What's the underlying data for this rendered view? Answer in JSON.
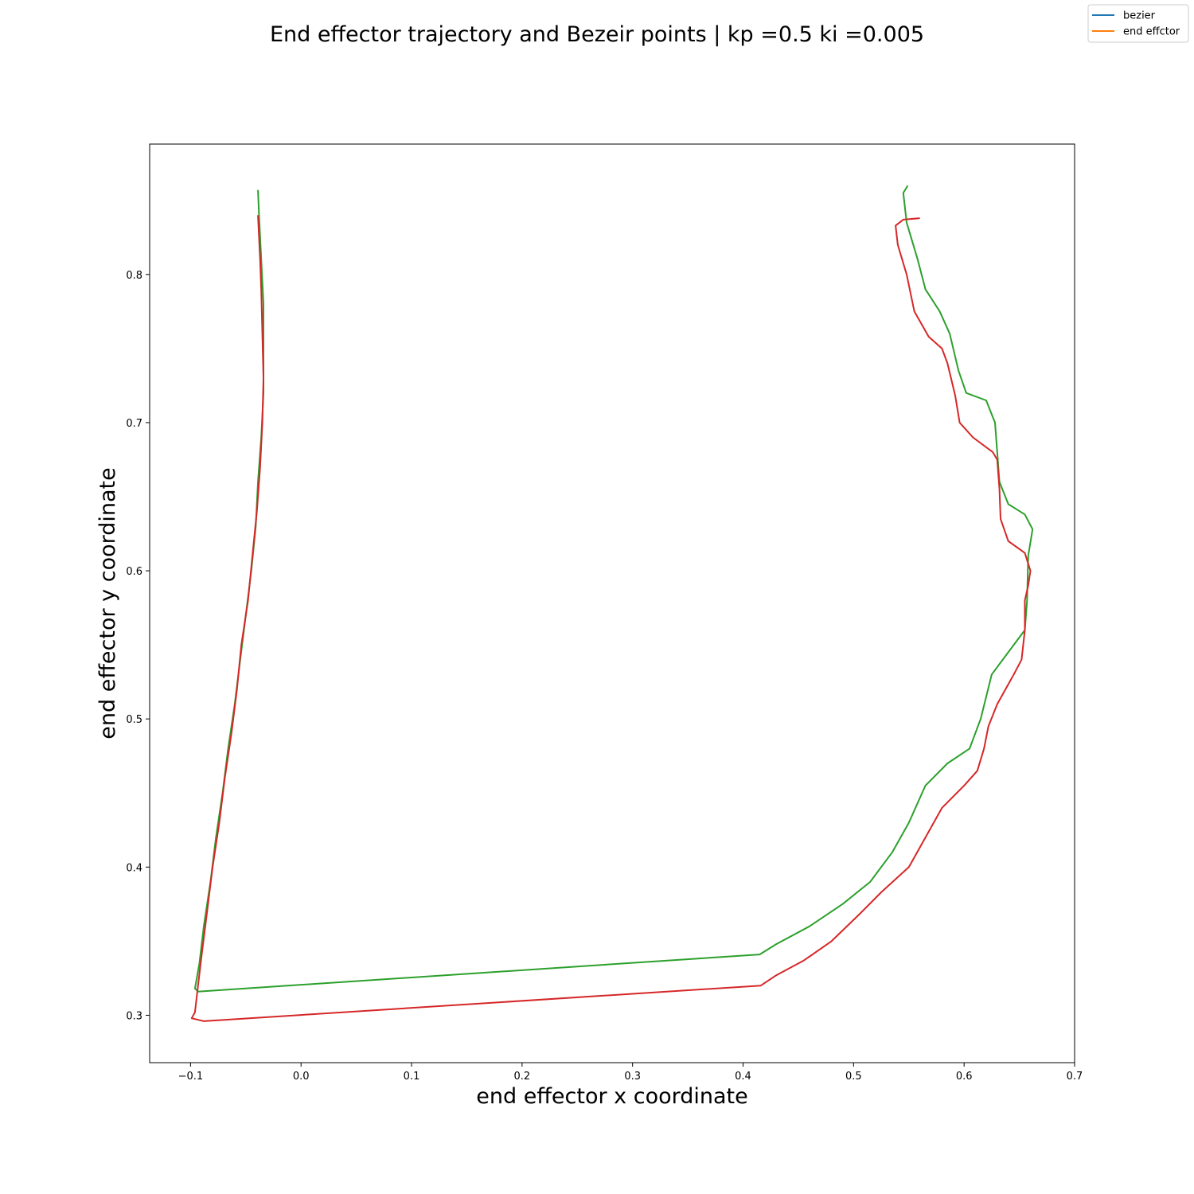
{
  "chart_data": {
    "type": "line",
    "title": "End effector trajectory and Bezeir points | kp =0.5 ki =0.005",
    "xlabel": "end effector x coordinate",
    "ylabel": "end effector y coordinate",
    "xlim": [
      -0.137,
      0.7
    ],
    "ylim": [
      0.268,
      0.888
    ],
    "xticks": [
      -0.1,
      0.0,
      0.1,
      0.2,
      0.3,
      0.4,
      0.5,
      0.6,
      0.7
    ],
    "xtick_labels": [
      "−0.1",
      "0.0",
      "0.1",
      "0.2",
      "0.3",
      "0.4",
      "0.5",
      "0.6",
      "0.7"
    ],
    "yticks": [
      0.3,
      0.4,
      0.5,
      0.6,
      0.7,
      0.8
    ],
    "ytick_labels": [
      "0.3",
      "0.4",
      "0.5",
      "0.6",
      "0.7",
      "0.8"
    ],
    "grid": false,
    "legend": {
      "position": "top-right",
      "entries": [
        {
          "label": "bezier",
          "color": "#1f77b4"
        },
        {
          "label": "end effctor",
          "color": "#ff7f0e"
        }
      ]
    },
    "series": [
      {
        "color": "#2ca02c",
        "points": [
          [
            -0.039,
            0.857
          ],
          [
            -0.038,
            0.84
          ],
          [
            -0.036,
            0.81
          ],
          [
            -0.034,
            0.78
          ],
          [
            -0.034,
            0.75
          ],
          [
            -0.034,
            0.72
          ],
          [
            -0.036,
            0.69
          ],
          [
            -0.039,
            0.66
          ],
          [
            -0.041,
            0.63
          ],
          [
            -0.045,
            0.6
          ],
          [
            -0.05,
            0.57
          ],
          [
            -0.055,
            0.54
          ],
          [
            -0.06,
            0.51
          ],
          [
            -0.066,
            0.48
          ],
          [
            -0.071,
            0.45
          ],
          [
            -0.077,
            0.42
          ],
          [
            -0.082,
            0.39
          ],
          [
            -0.088,
            0.36
          ],
          [
            -0.092,
            0.335
          ],
          [
            -0.096,
            0.318
          ],
          [
            -0.093,
            0.316
          ],
          [
            0.415,
            0.341
          ],
          [
            0.43,
            0.348
          ],
          [
            0.46,
            0.36
          ],
          [
            0.49,
            0.375
          ],
          [
            0.515,
            0.39
          ],
          [
            0.535,
            0.41
          ],
          [
            0.55,
            0.43
          ],
          [
            0.565,
            0.455
          ],
          [
            0.585,
            0.47
          ],
          [
            0.605,
            0.48
          ],
          [
            0.615,
            0.5
          ],
          [
            0.625,
            0.53
          ],
          [
            0.64,
            0.545
          ],
          [
            0.655,
            0.56
          ],
          [
            0.657,
            0.58
          ],
          [
            0.658,
            0.61
          ],
          [
            0.662,
            0.628
          ],
          [
            0.655,
            0.638
          ],
          [
            0.64,
            0.645
          ],
          [
            0.632,
            0.66
          ],
          [
            0.63,
            0.68
          ],
          [
            0.628,
            0.7
          ],
          [
            0.62,
            0.715
          ],
          [
            0.602,
            0.72
          ],
          [
            0.595,
            0.735
          ],
          [
            0.587,
            0.76
          ],
          [
            0.578,
            0.775
          ],
          [
            0.565,
            0.79
          ],
          [
            0.558,
            0.81
          ],
          [
            0.548,
            0.835
          ],
          [
            0.545,
            0.855
          ],
          [
            0.549,
            0.86
          ]
        ]
      },
      {
        "color": "#d62728",
        "points": [
          [
            -0.039,
            0.84
          ],
          [
            -0.037,
            0.81
          ],
          [
            -0.036,
            0.79
          ],
          [
            -0.035,
            0.76
          ],
          [
            -0.034,
            0.73
          ],
          [
            -0.035,
            0.7
          ],
          [
            -0.037,
            0.67
          ],
          [
            -0.04,
            0.64
          ],
          [
            -0.044,
            0.61
          ],
          [
            -0.048,
            0.58
          ],
          [
            -0.054,
            0.55
          ],
          [
            -0.058,
            0.52
          ],
          [
            -0.063,
            0.49
          ],
          [
            -0.069,
            0.46
          ],
          [
            -0.074,
            0.43
          ],
          [
            -0.08,
            0.4
          ],
          [
            -0.085,
            0.37
          ],
          [
            -0.09,
            0.34
          ],
          [
            -0.094,
            0.315
          ],
          [
            -0.096,
            0.302
          ],
          [
            -0.099,
            0.298
          ],
          [
            -0.088,
            0.296
          ],
          [
            0.416,
            0.32
          ],
          [
            0.43,
            0.327
          ],
          [
            0.455,
            0.337
          ],
          [
            0.48,
            0.35
          ],
          [
            0.505,
            0.368
          ],
          [
            0.525,
            0.383
          ],
          [
            0.55,
            0.4
          ],
          [
            0.565,
            0.42
          ],
          [
            0.58,
            0.44
          ],
          [
            0.6,
            0.455
          ],
          [
            0.612,
            0.465
          ],
          [
            0.618,
            0.48
          ],
          [
            0.622,
            0.495
          ],
          [
            0.63,
            0.51
          ],
          [
            0.645,
            0.53
          ],
          [
            0.652,
            0.54
          ],
          [
            0.655,
            0.56
          ],
          [
            0.655,
            0.58
          ],
          [
            0.658,
            0.59
          ],
          [
            0.66,
            0.6
          ],
          [
            0.655,
            0.612
          ],
          [
            0.64,
            0.62
          ],
          [
            0.633,
            0.635
          ],
          [
            0.632,
            0.655
          ],
          [
            0.63,
            0.675
          ],
          [
            0.626,
            0.68
          ],
          [
            0.608,
            0.69
          ],
          [
            0.596,
            0.7
          ],
          [
            0.592,
            0.718
          ],
          [
            0.585,
            0.74
          ],
          [
            0.58,
            0.75
          ],
          [
            0.568,
            0.758
          ],
          [
            0.555,
            0.775
          ],
          [
            0.548,
            0.8
          ],
          [
            0.54,
            0.82
          ],
          [
            0.538,
            0.833
          ],
          [
            0.545,
            0.837
          ],
          [
            0.56,
            0.838
          ]
        ]
      }
    ]
  }
}
